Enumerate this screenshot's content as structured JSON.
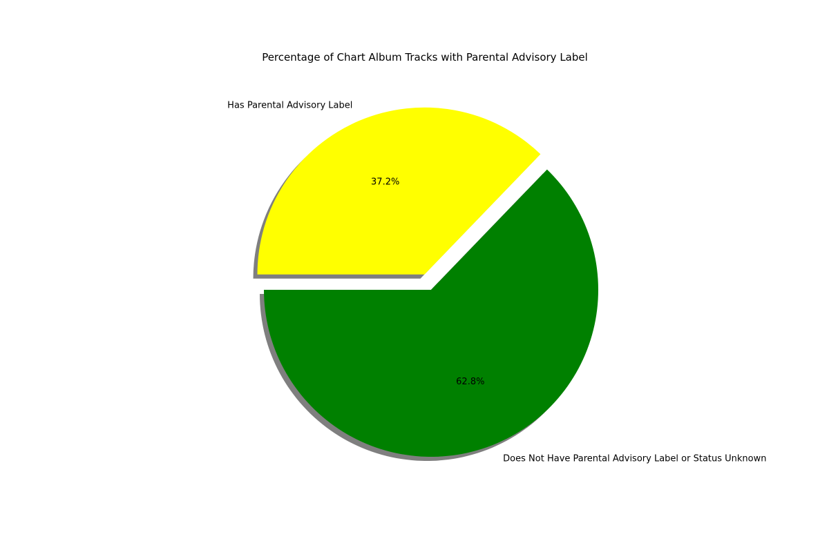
{
  "chart_data": {
    "type": "pie",
    "title": "Percentage of Chart Album Tracks with Parental Advisory Label",
    "slices": [
      {
        "label": "Has Parental Advisory Label",
        "value": 37.2,
        "pct_label": "37.2%",
        "color": "#ffff00",
        "exploded": true
      },
      {
        "label": "Does Not Have Parental Advisory Label or Status Unknown",
        "value": 62.8,
        "pct_label": "62.8%",
        "color": "#008000",
        "exploded": false
      }
    ],
    "start_angle_deg": 180,
    "direction": "clockwise",
    "shadow": true
  }
}
